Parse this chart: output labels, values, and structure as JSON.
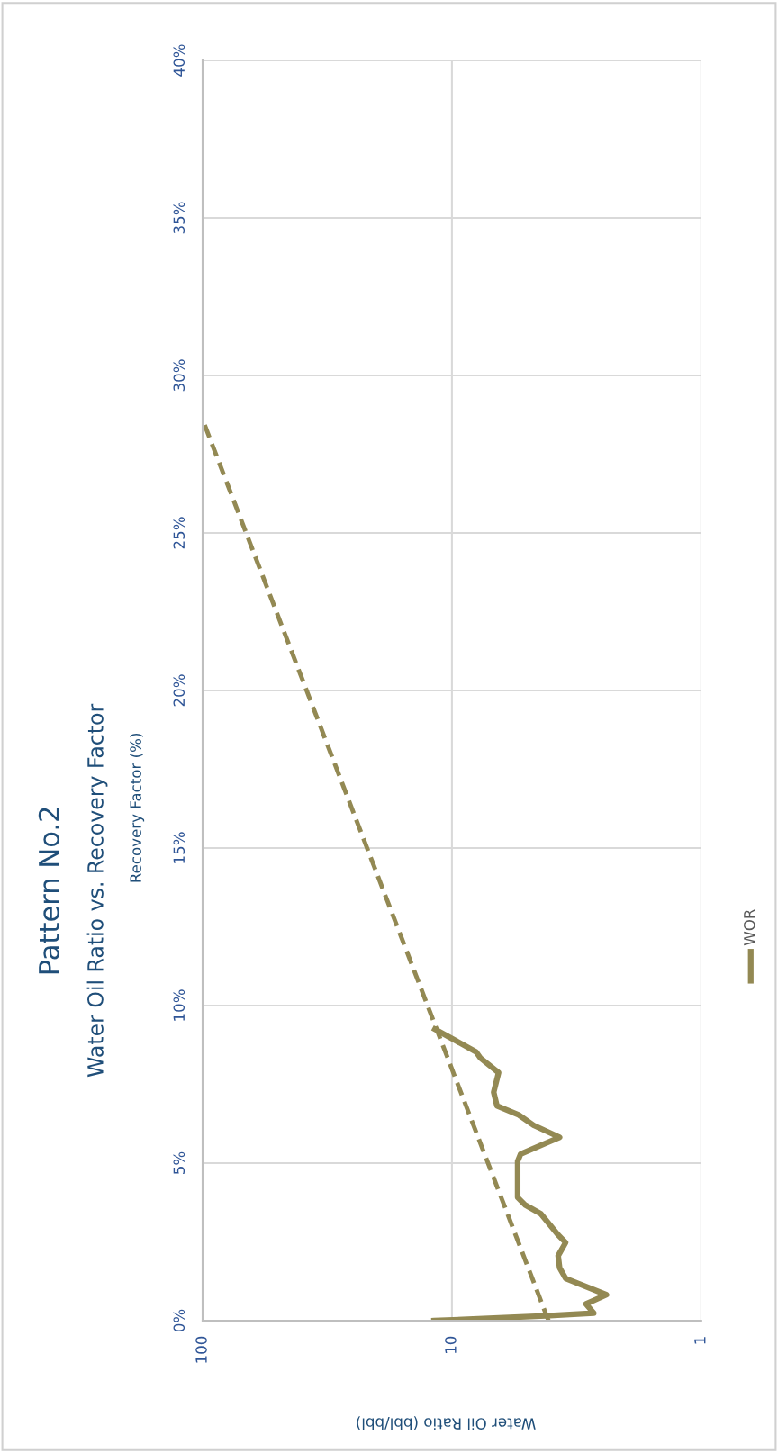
{
  "chart_data": {
    "type": "line",
    "title": "Pattern No.2",
    "subtitle": "Water Oil Ratio vs. Recovery Factor",
    "xlabel": "Water Oil Ratio (bbl/bbl)",
    "ylabel": "Recovery Factor (%)",
    "xlim": [
      100,
      1
    ],
    "xticks": [
      100,
      10,
      1
    ],
    "log": "x",
    "grid": true,
    "legend": "right",
    "ylim": [
      0,
      40
    ],
    "yticks": [
      {
        "value": 0,
        "label": "0%"
      },
      {
        "value": 5,
        "label": "5%"
      },
      {
        "value": 10,
        "label": "10%"
      },
      {
        "value": 15,
        "label": "15%"
      },
      {
        "value": 20,
        "label": "20%"
      },
      {
        "value": 25,
        "label": "25%"
      },
      {
        "value": 30,
        "label": "30%"
      },
      {
        "value": 35,
        "label": "35%"
      },
      {
        "value": 40,
        "label": "40%"
      }
    ],
    "series": [
      {
        "name": "WOR",
        "color": "#938953",
        "line_style": "solid",
        "x": [
          11.8,
          4.2,
          2.7,
          2.9,
          2.4,
          3.5,
          3.7,
          3.75,
          3.5,
          3.75,
          4.4,
          5.1,
          5.45,
          5.45,
          5.3,
          3.7,
          4.7,
          5.4,
          6.6,
          6.8,
          6.5,
          7.7,
          8.0,
          11.7
        ],
        "values": [
          0,
          0.15,
          0.24,
          0.53,
          0.82,
          1.34,
          1.68,
          2.06,
          2.48,
          2.72,
          3.39,
          3.68,
          3.91,
          5.06,
          5.29,
          5.82,
          6.2,
          6.53,
          6.82,
          7.25,
          7.87,
          8.34,
          8.53,
          9.25
        ]
      },
      {
        "type": "line",
        "color": "#938953",
        "line_style": "dashed",
        "x": [
          4.1,
          100
        ],
        "values": [
          0,
          28.6
        ]
      }
    ]
  }
}
